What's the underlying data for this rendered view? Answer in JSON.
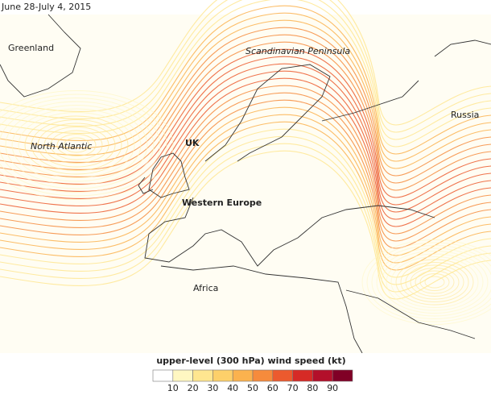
{
  "title": "June 28-July 4, 2015",
  "labels": [
    {
      "text": "Greenland",
      "style": "plain"
    },
    {
      "text": "Scandinavian Peninsula",
      "style": "italic"
    },
    {
      "text": "North Atlantic",
      "style": "italic"
    },
    {
      "text": "UK",
      "style": "bold"
    },
    {
      "text": "Western Europe",
      "style": "bold"
    },
    {
      "text": "Russia",
      "style": "plain"
    },
    {
      "text": "Africa",
      "style": "plain"
    }
  ],
  "legend": {
    "title": "upper-level (300 hPa) wind speed (kt)",
    "ticks": [
      10,
      20,
      30,
      40,
      50,
      60,
      70,
      80,
      90
    ],
    "colors": [
      "#ffffff",
      "#fff7c2",
      "#ffe690",
      "#fdd06a",
      "#fbb24e",
      "#f68b3c",
      "#ec5a2e",
      "#d62a26",
      "#b30f2a",
      "#800026"
    ]
  }
}
